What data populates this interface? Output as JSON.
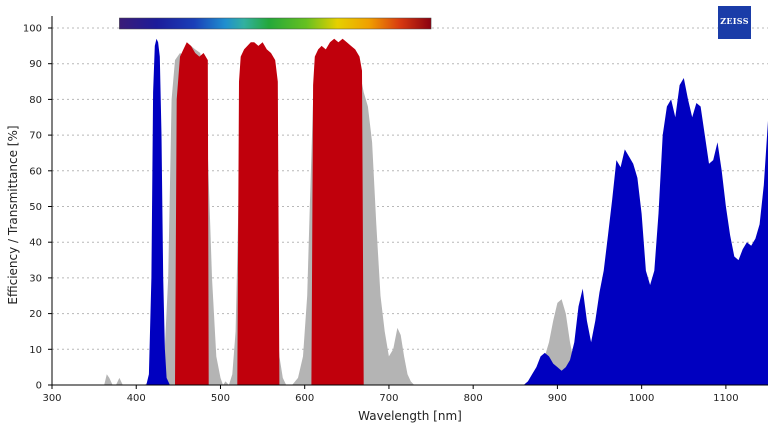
{
  "brand": {
    "logo_text": "ZEISS",
    "logo_color": "#1a3ca8"
  },
  "chart_data": {
    "type": "area",
    "xlabel": "Wavelength [nm]",
    "ylabel": "Efficiency / Transmittance [%]",
    "xlim": [
      300,
      1150
    ],
    "ylim": [
      0,
      100
    ],
    "xticks": [
      300,
      400,
      500,
      600,
      700,
      800,
      900,
      1000,
      1100
    ],
    "yticks": [
      0,
      10,
      20,
      30,
      40,
      50,
      60,
      70,
      80,
      90,
      100
    ],
    "grid": true,
    "spectrum_bar": {
      "from": 380,
      "to": 750
    },
    "series": [
      {
        "color": "#b4b4b4",
        "x": [
          300,
          362,
          365,
          368,
          372,
          376,
          380,
          384,
          400,
          410,
          415,
          420,
          425,
          432,
          438,
          442,
          446,
          452,
          458,
          465,
          470,
          476,
          480,
          485,
          490,
          495,
          500,
          503,
          506,
          510,
          514,
          518,
          522,
          526,
          530,
          540,
          550,
          556,
          560,
          565,
          570,
          574,
          578,
          585,
          592,
          598,
          603,
          606,
          610,
          615,
          620,
          630,
          640,
          650,
          660,
          665,
          670,
          675,
          680,
          685,
          690,
          695,
          700,
          705,
          710,
          714,
          718,
          722,
          726,
          730,
          732,
          860,
          870,
          880,
          885,
          890,
          895,
          900,
          905,
          910,
          915,
          920,
          930,
          1150
        ],
        "y": [
          0,
          0,
          3,
          2,
          0,
          0,
          2,
          0,
          0,
          0,
          1,
          0,
          0,
          1,
          30,
          80,
          91,
          93,
          92,
          95,
          94,
          93,
          85,
          65,
          30,
          8,
          2,
          0,
          1,
          0,
          3,
          15,
          58,
          85,
          92,
          94,
          92,
          85,
          60,
          25,
          8,
          2,
          0,
          0,
          2,
          8,
          25,
          50,
          80,
          92,
          93,
          94,
          95,
          94,
          92,
          88,
          82,
          78,
          68,
          45,
          25,
          15,
          8,
          10,
          16,
          14,
          8,
          3,
          1,
          0,
          0,
          0,
          2,
          5,
          8,
          12,
          18,
          23,
          24,
          20,
          12,
          6,
          2,
          0
        ]
      },
      {
        "color": "#c0000c",
        "x": [
          300,
          446,
          448,
          452,
          456,
          460,
          465,
          470,
          475,
          480,
          485,
          486,
          520,
          522,
          524,
          528,
          532,
          536,
          540,
          545,
          550,
          555,
          560,
          565,
          568,
          570,
          608,
          610,
          612,
          616,
          620,
          625,
          630,
          635,
          640,
          645,
          650,
          655,
          660,
          665,
          668,
          670,
          1150
        ],
        "y": [
          0,
          0,
          80,
          92,
          94,
          96,
          95,
          93,
          92,
          93,
          91,
          0,
          0,
          85,
          92,
          94,
          95,
          96,
          96,
          95,
          96,
          94,
          93,
          91,
          85,
          0,
          0,
          84,
          92,
          94,
          95,
          94,
          96,
          97,
          96,
          97,
          96,
          95,
          94,
          92,
          88,
          0,
          0
        ]
      },
      {
        "color": "#0000c0",
        "x": [
          300,
          412,
          415,
          418,
          420,
          422,
          424,
          426,
          428,
          430,
          432,
          434,
          436,
          440,
          860,
          865,
          870,
          875,
          880,
          885,
          890,
          895,
          900,
          905,
          910,
          915,
          920,
          925,
          930,
          935,
          940,
          945,
          950,
          955,
          960,
          965,
          970,
          975,
          980,
          985,
          990,
          995,
          1000,
          1005,
          1010,
          1015,
          1020,
          1025,
          1030,
          1035,
          1040,
          1045,
          1050,
          1055,
          1060,
          1065,
          1070,
          1075,
          1080,
          1085,
          1090,
          1095,
          1100,
          1105,
          1110,
          1115,
          1120,
          1125,
          1130,
          1135,
          1140,
          1145,
          1150
        ],
        "y": [
          0,
          0,
          3,
          30,
          82,
          95,
          97,
          96,
          92,
          70,
          30,
          10,
          2,
          0,
          0,
          1,
          3,
          5,
          8,
          9,
          8,
          6,
          5,
          4,
          5,
          7,
          12,
          22,
          27,
          18,
          12,
          18,
          26,
          32,
          42,
          52,
          63,
          61,
          66,
          64,
          62,
          58,
          48,
          32,
          28,
          32,
          48,
          70,
          78,
          80,
          75,
          84,
          86,
          80,
          75,
          79,
          78,
          70,
          62,
          63,
          68,
          60,
          50,
          42,
          36,
          35,
          38,
          40,
          39,
          41,
          45,
          56,
          74
        ]
      }
    ]
  }
}
